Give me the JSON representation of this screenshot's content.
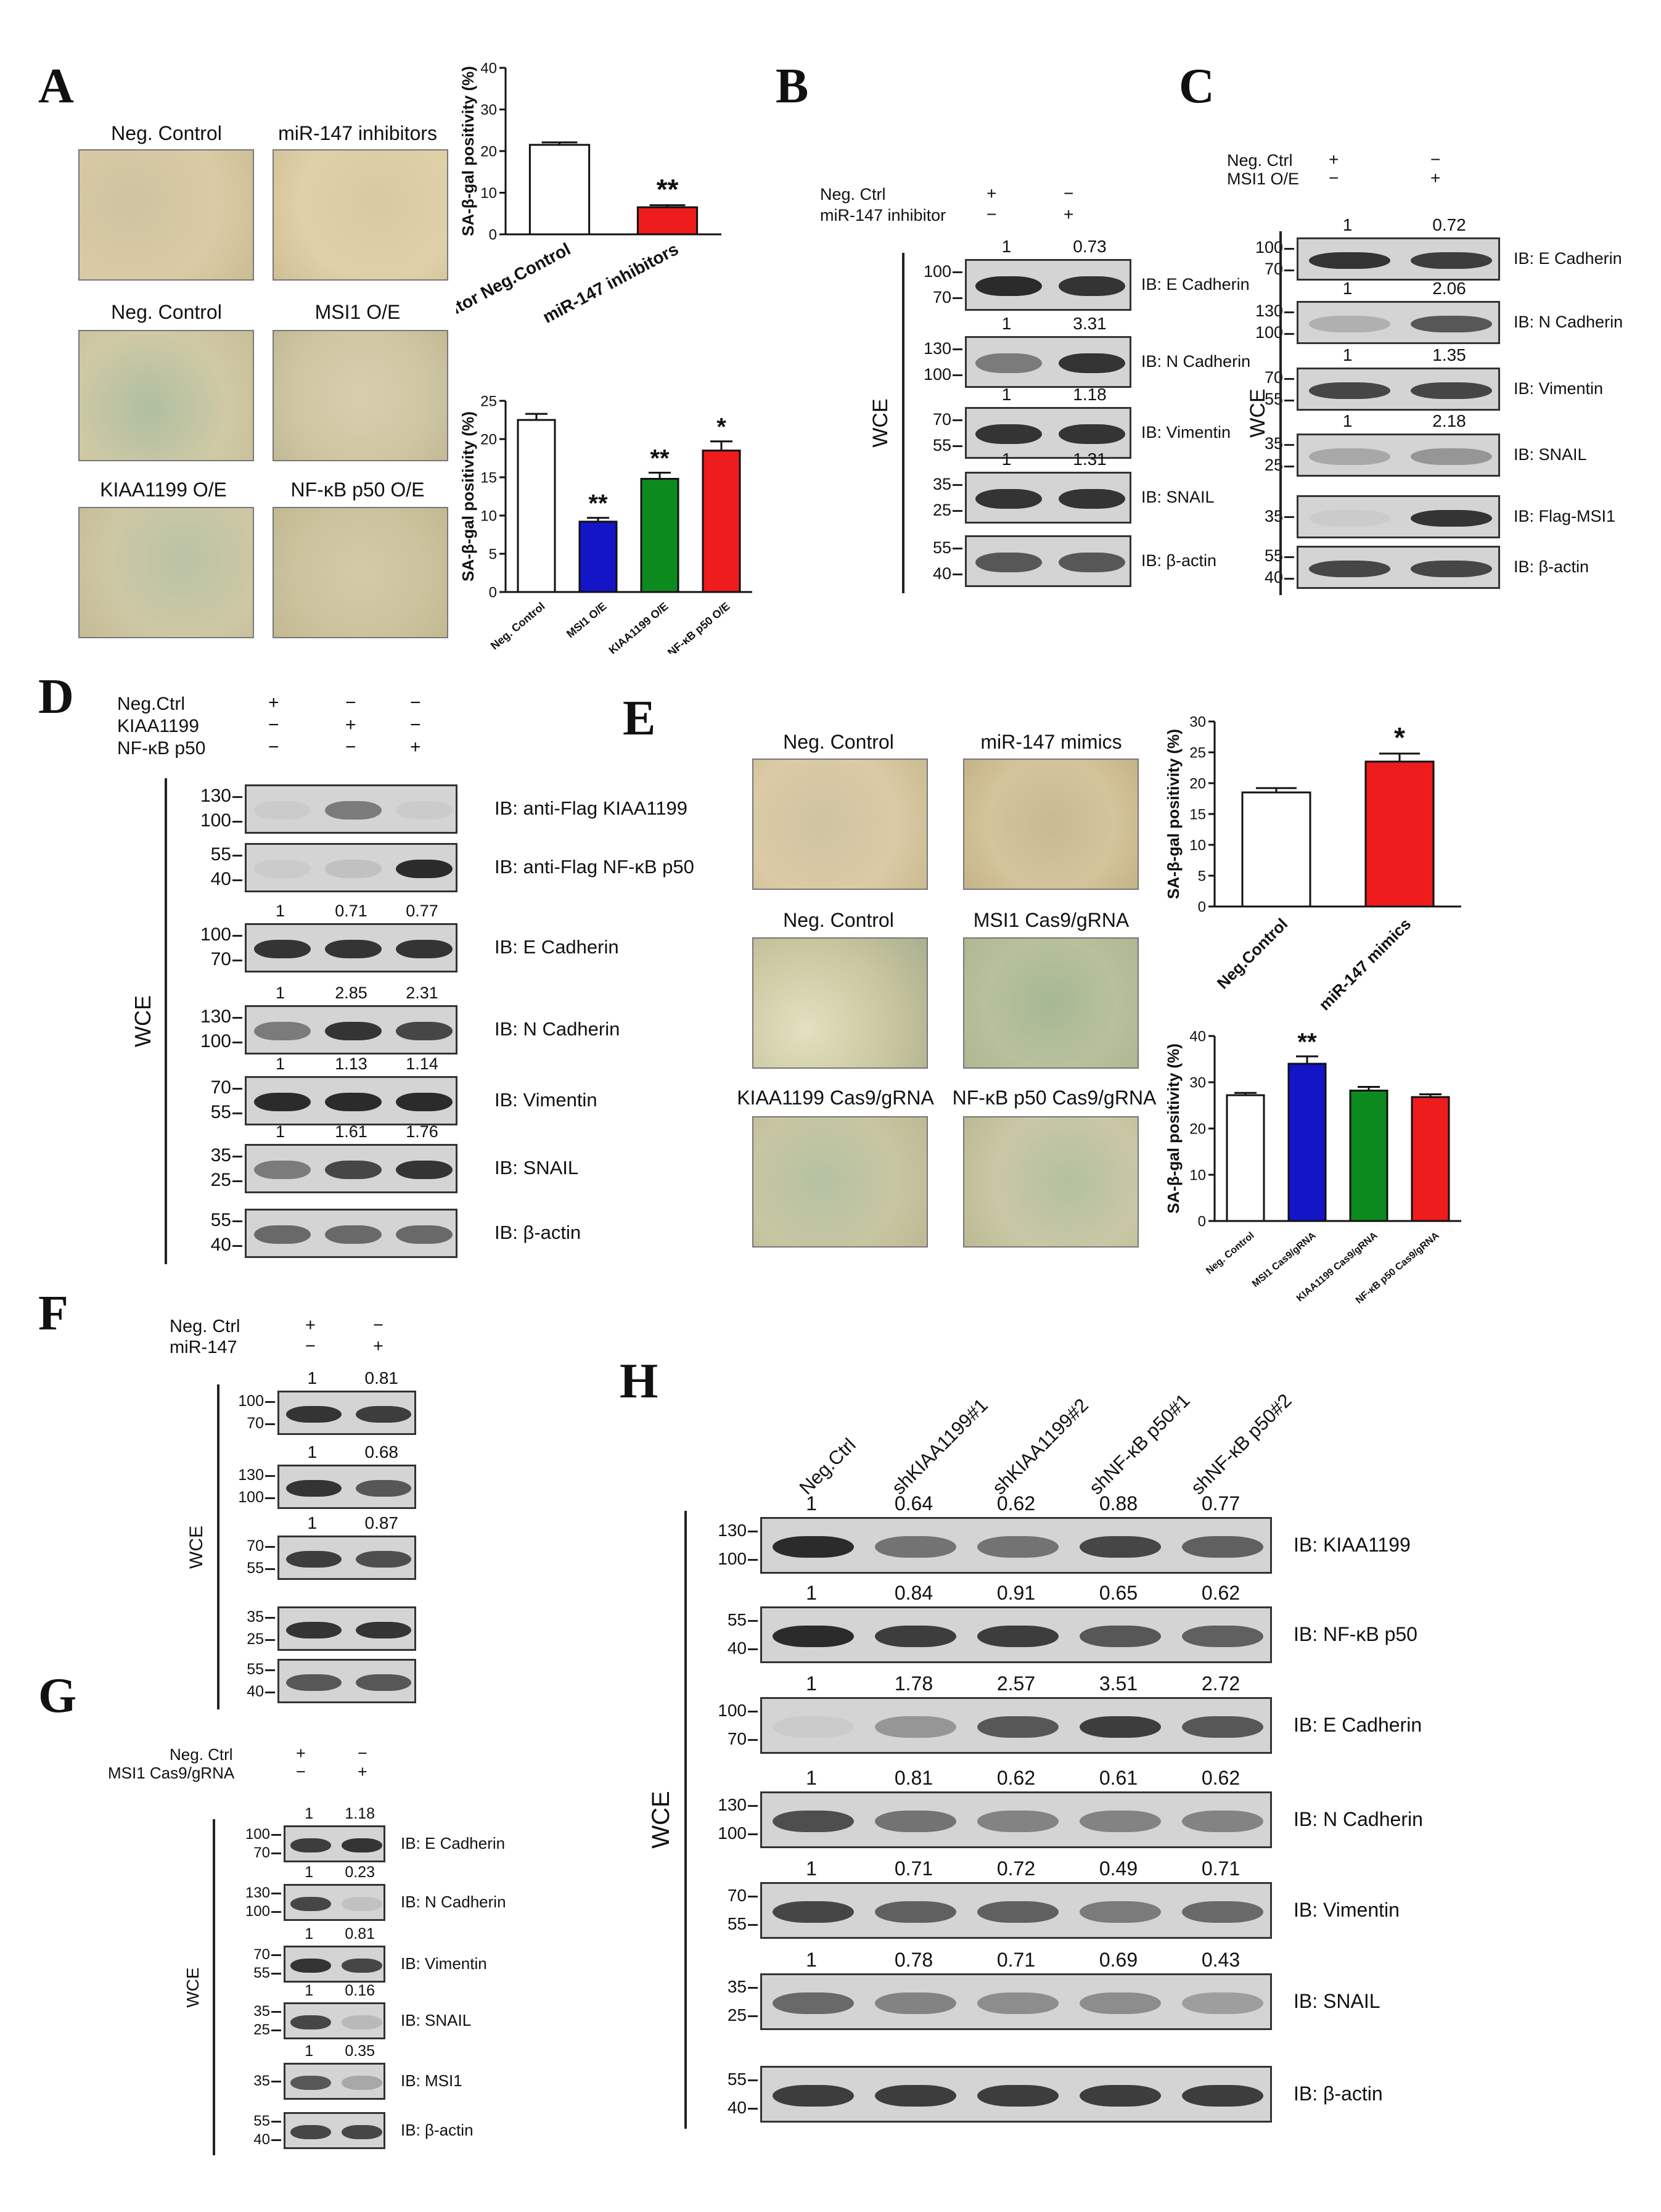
{
  "figure": {
    "panel_labels": [
      "A",
      "B",
      "C",
      "D",
      "E",
      "F",
      "G",
      "H"
    ]
  },
  "common": {
    "wce": "WCE",
    "plus": "+",
    "minus": "−"
  },
  "panelA": {
    "photos": [
      {
        "label": "Neg. Control"
      },
      {
        "label": "miR-147 inhibitors"
      },
      {
        "label": "Neg. Control"
      },
      {
        "label": "MSI1 O/E"
      },
      {
        "label": "KIAA1199 O/E"
      },
      {
        "label": "NF-κB p50 O/E"
      }
    ],
    "sig_top": "**",
    "sig_bottom": [
      "**",
      "**",
      "*"
    ]
  },
  "panelB": {
    "conditions": [
      "Neg. Ctrl",
      "miR-147 inhibitor"
    ],
    "signs": [
      [
        "+",
        "−"
      ],
      [
        "−",
        "+"
      ]
    ],
    "rows": [
      {
        "ib": "IB: E Cadherin",
        "mw": [
          "100",
          "70"
        ],
        "q": [
          "1",
          "0.73"
        ]
      },
      {
        "ib": "IB: N Cadherin",
        "mw": [
          "130",
          "100"
        ],
        "q": [
          "1",
          "3.31"
        ]
      },
      {
        "ib": "IB: Vimentin",
        "mw": [
          "70",
          "55"
        ],
        "q": [
          "1",
          "1.18"
        ]
      },
      {
        "ib": "IB: SNAIL",
        "mw": [
          "35",
          "25"
        ],
        "q": [
          "1",
          "1.31"
        ]
      },
      {
        "ib": "IB: β-actin",
        "mw": [
          "55",
          "40"
        ],
        "q": null
      }
    ]
  },
  "panelC": {
    "conditions": [
      "Neg. Ctrl",
      "MSI1 O/E"
    ],
    "signs": [
      [
        "+",
        "−"
      ],
      [
        "−",
        "+"
      ]
    ],
    "rows": [
      {
        "ib": "IB: E Cadherin",
        "mw": [
          "100",
          "70"
        ],
        "q": [
          "1",
          "0.72"
        ]
      },
      {
        "ib": "IB: N Cadherin",
        "mw": [
          "130",
          "100"
        ],
        "q": [
          "1",
          "2.06"
        ]
      },
      {
        "ib": "IB: Vimentin",
        "mw": [
          "70",
          "55"
        ],
        "q": [
          "1",
          "1.35"
        ]
      },
      {
        "ib": "IB: SNAIL",
        "mw": [
          "35",
          "25"
        ],
        "q": [
          "1",
          "2.18"
        ]
      },
      {
        "ib": "IB: Flag-MSI1",
        "mw": [
          "35"
        ],
        "q": null
      },
      {
        "ib": "IB: β-actin",
        "mw": [
          "55",
          "40"
        ],
        "q": null
      }
    ]
  },
  "panelD": {
    "conditions": [
      "Neg.Ctrl",
      "KIAA1199",
      "NF-κB p50"
    ],
    "signs": [
      [
        "+",
        "−",
        "−"
      ],
      [
        "−",
        "+",
        "−"
      ],
      [
        "−",
        "−",
        "+"
      ]
    ],
    "rows": [
      {
        "ib": "IB: anti-Flag KIAA1199",
        "mw": [
          "130",
          "100"
        ],
        "q": null
      },
      {
        "ib": "IB: anti-Flag NF-κB p50",
        "mw": [
          "55",
          "40"
        ],
        "q": null
      },
      {
        "ib": "IB: E Cadherin",
        "mw": [
          "100",
          "70"
        ],
        "q": [
          "1",
          "0.71",
          "0.77"
        ]
      },
      {
        "ib": "IB: N Cadherin",
        "mw": [
          "130",
          "100"
        ],
        "q": [
          "1",
          "2.85",
          "2.31"
        ]
      },
      {
        "ib": "IB: Vimentin",
        "mw": [
          "70",
          "55"
        ],
        "q": [
          "1",
          "1.13",
          "1.14"
        ]
      },
      {
        "ib": "IB: SNAIL",
        "mw": [
          "35",
          "25"
        ],
        "q": [
          "1",
          "1.61",
          "1.76"
        ]
      },
      {
        "ib": "IB: β-actin",
        "mw": [
          "55",
          "40"
        ],
        "q": null
      }
    ]
  },
  "panelE": {
    "photos": [
      {
        "label": "Neg. Control"
      },
      {
        "label": "miR-147 mimics"
      },
      {
        "label": "Neg. Control"
      },
      {
        "label": "MSI1 Cas9/gRNA"
      },
      {
        "label": "KIAA1199 Cas9/gRNA"
      },
      {
        "label": "NF-κB p50 Cas9/gRNA"
      }
    ],
    "sig_top": "*",
    "sig_bottom": "**"
  },
  "panelF": {
    "conditions": [
      "Neg. Ctrl",
      "miR-147"
    ],
    "signs": [
      [
        "+",
        "−"
      ],
      [
        "−",
        "+"
      ]
    ],
    "rows": [
      {
        "mw": [
          "100",
          "70"
        ],
        "q": [
          "1",
          "0.81"
        ]
      },
      {
        "mw": [
          "130",
          "100"
        ],
        "q": [
          "1",
          "0.68"
        ]
      },
      {
        "mw": [
          "70",
          "55"
        ],
        "q": [
          "1",
          "0.87"
        ]
      },
      {
        "mw": [
          "35",
          "25"
        ],
        "q": null
      },
      {
        "mw": [
          "55",
          "40"
        ],
        "q": null
      }
    ]
  },
  "panelG": {
    "conditions": [
      "Neg. Ctrl",
      "MSI1 Cas9/gRNA"
    ],
    "signs": [
      [
        "+",
        "−"
      ],
      [
        "−",
        "+"
      ]
    ],
    "rows": [
      {
        "ib": "IB: E Cadherin",
        "mw": [
          "100",
          "70"
        ],
        "q": [
          "1",
          "1.18"
        ]
      },
      {
        "ib": "IB: N Cadherin",
        "mw": [
          "130",
          "100"
        ],
        "q": [
          "1",
          "0.23"
        ]
      },
      {
        "ib": "IB: Vimentin",
        "mw": [
          "70",
          "55"
        ],
        "q": [
          "1",
          "0.81"
        ]
      },
      {
        "ib": "IB: SNAIL",
        "mw": [
          "35",
          "25"
        ],
        "q": [
          "1",
          "0.16"
        ]
      },
      {
        "ib": "IB: MSI1",
        "mw": [
          "35"
        ],
        "q": [
          "1",
          "0.35"
        ]
      },
      {
        "ib": "IB: β-actin",
        "mw": [
          "55",
          "40"
        ],
        "q": null
      }
    ]
  },
  "panelH": {
    "lanes": [
      "Neg.Ctrl",
      "shKIAA1199#1",
      "shKIAA1199#2",
      "shNF-κB p50#1",
      "shNF-κB p50#2"
    ],
    "rows": [
      {
        "ib": "IB: KIAA1199",
        "mw": [
          "130",
          "100"
        ],
        "q": [
          "1",
          "0.64",
          "0.62",
          "0.88",
          "0.77"
        ]
      },
      {
        "ib": "IB: NF-κB p50",
        "mw": [
          "55",
          "40"
        ],
        "q": [
          "1",
          "0.84",
          "0.91",
          "0.65",
          "0.62"
        ]
      },
      {
        "ib": "IB: E Cadherin",
        "mw": [
          "100",
          "70"
        ],
        "q": [
          "1",
          "1.78",
          "2.57",
          "3.51",
          "2.72"
        ]
      },
      {
        "ib": "IB: N Cadherin",
        "mw": [
          "130",
          "100"
        ],
        "q": [
          "1",
          "0.81",
          "0.62",
          "0.61",
          "0.62"
        ]
      },
      {
        "ib": "IB: Vimentin",
        "mw": [
          "70",
          "55"
        ],
        "q": [
          "1",
          "0.71",
          "0.72",
          "0.49",
          "0.71"
        ]
      },
      {
        "ib": "IB: SNAIL",
        "mw": [
          "35",
          "25"
        ],
        "q": [
          "1",
          "0.78",
          "0.71",
          "0.69",
          "0.43"
        ]
      },
      {
        "ib": "IB: β-actin",
        "mw": [
          "55",
          "40"
        ],
        "q": null
      }
    ]
  },
  "chart_data": [
    {
      "type": "bar",
      "id": "A-top",
      "categories": [
        "Inhibitor Neg.Control",
        "miR-147 inhibitors"
      ],
      "values": [
        21.5,
        6.5
      ],
      "errors": [
        0.6,
        0.5
      ],
      "colors": [
        "#ffffff",
        "#ee1c1c"
      ],
      "ylabel": "SA-β-gal positivity (%)",
      "ylim": [
        0,
        40
      ],
      "yticks": [
        0,
        10,
        20,
        30,
        40
      ],
      "significance": [
        "",
        "**"
      ]
    },
    {
      "type": "bar",
      "id": "A-bottom",
      "categories": [
        "Neg. Control",
        "MSI1 O/E",
        "KIAA1199 O/E",
        "NF-κB p50 O/E"
      ],
      "values": [
        22.5,
        9.2,
        14.8,
        18.5
      ],
      "errors": [
        0.8,
        0.5,
        0.8,
        1.2
      ],
      "colors": [
        "#ffffff",
        "#1414c8",
        "#0d8a1e",
        "#ee1c1c"
      ],
      "ylabel": "SA-β-gal positivity (%)",
      "ylim": [
        0,
        25
      ],
      "yticks": [
        0,
        5,
        10,
        15,
        20,
        25
      ],
      "significance": [
        "",
        "**",
        "**",
        "*"
      ]
    },
    {
      "type": "bar",
      "id": "E-top",
      "categories": [
        "Neg.Control",
        "miR-147 mimics"
      ],
      "values": [
        18.5,
        23.5
      ],
      "errors": [
        0.7,
        1.3
      ],
      "colors": [
        "#ffffff",
        "#ee1c1c"
      ],
      "ylabel": "SA-β-gal positivity (%)",
      "ylim": [
        0,
        30
      ],
      "yticks": [
        0,
        5,
        10,
        15,
        20,
        25,
        30
      ],
      "significance": [
        "",
        "*"
      ]
    },
    {
      "type": "bar",
      "id": "E-bottom",
      "categories": [
        "Neg. Control",
        "MSI1 Cas9/gRNA",
        "KIAA1199 Cas9/gRNA",
        "NF-κB p50 Cas9/gRNA"
      ],
      "values": [
        27.2,
        34.0,
        28.2,
        26.8
      ],
      "errors": [
        0.5,
        1.6,
        0.8,
        0.6
      ],
      "colors": [
        "#ffffff",
        "#1414c8",
        "#0d8a1e",
        "#ee1c1c"
      ],
      "ylabel": "SA-β-gal positivity (%)",
      "ylim": [
        0,
        40
      ],
      "yticks": [
        0,
        10,
        20,
        30,
        40
      ],
      "significance": [
        "",
        "**",
        "",
        ""
      ]
    }
  ]
}
